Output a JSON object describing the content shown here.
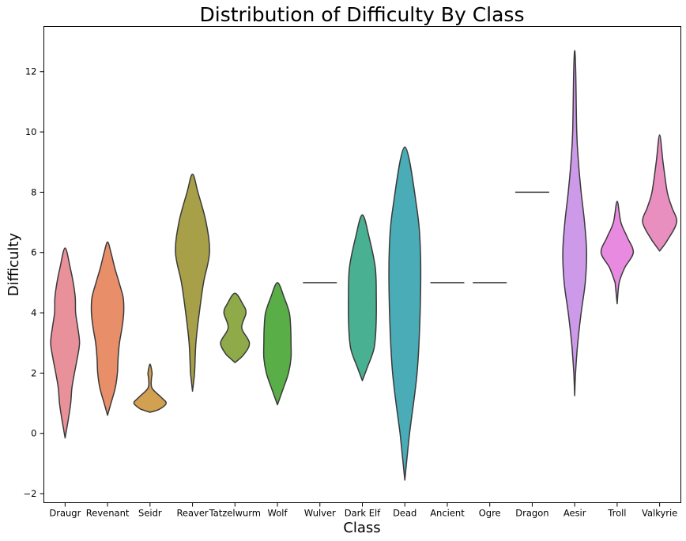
{
  "chart_data": {
    "type": "violin",
    "title": "Distribution of Difficulty By Class",
    "xlabel": "Class",
    "ylabel": "Difficulty",
    "ylim": [
      -2.3,
      13.5
    ],
    "yticks": [
      -2,
      0,
      2,
      4,
      6,
      8,
      10,
      12
    ],
    "grid": false,
    "legend": "none",
    "categories": [
      "Draugr",
      "Revenant",
      "Seidr",
      "Reaver",
      "Tatzelwurm",
      "Wolf",
      "Wulver",
      "Dark Elf",
      "Dead",
      "Ancient",
      "Ogre",
      "Dragon",
      "Aesir",
      "Troll",
      "Valkyrie"
    ],
    "violins": [
      {
        "category": "Draugr",
        "color": "#e8919a",
        "profile": [
          [
            -0.15,
            0.0
          ],
          [
            0.5,
            0.2
          ],
          [
            1.0,
            0.33
          ],
          [
            1.5,
            0.4
          ],
          [
            2.0,
            0.55
          ],
          [
            2.5,
            0.72
          ],
          [
            3.0,
            0.85
          ],
          [
            3.5,
            0.75
          ],
          [
            4.0,
            0.62
          ],
          [
            4.5,
            0.6
          ],
          [
            5.0,
            0.48
          ],
          [
            5.5,
            0.3
          ],
          [
            6.15,
            0.0
          ]
        ]
      },
      {
        "category": "Revenant",
        "color": "#e88f6a",
        "profile": [
          [
            0.6,
            0.0
          ],
          [
            1.0,
            0.2
          ],
          [
            1.5,
            0.45
          ],
          [
            2.0,
            0.58
          ],
          [
            2.5,
            0.62
          ],
          [
            3.0,
            0.7
          ],
          [
            3.5,
            0.85
          ],
          [
            4.0,
            0.95
          ],
          [
            4.5,
            0.92
          ],
          [
            5.0,
            0.68
          ],
          [
            5.5,
            0.42
          ],
          [
            6.0,
            0.2
          ],
          [
            6.35,
            0.0
          ]
        ]
      },
      {
        "category": "Seidr",
        "color": "#d1a050",
        "profile": [
          [
            0.7,
            0.0
          ],
          [
            0.8,
            0.55
          ],
          [
            1.0,
            0.95
          ],
          [
            1.2,
            0.65
          ],
          [
            1.5,
            0.12
          ],
          [
            1.8,
            0.08
          ],
          [
            2.0,
            0.12
          ],
          [
            2.3,
            0.0
          ]
        ]
      },
      {
        "category": "Reaver",
        "color": "#a8a048",
        "profile": [
          [
            1.4,
            0.0
          ],
          [
            2.0,
            0.12
          ],
          [
            3.0,
            0.2
          ],
          [
            4.0,
            0.4
          ],
          [
            5.0,
            0.65
          ],
          [
            6.0,
            1.0
          ],
          [
            7.0,
            0.8
          ],
          [
            8.0,
            0.32
          ],
          [
            8.6,
            0.0
          ]
        ]
      },
      {
        "category": "Tatzelwurm",
        "color": "#8faa48",
        "profile": [
          [
            2.35,
            0.0
          ],
          [
            2.6,
            0.5
          ],
          [
            3.0,
            0.85
          ],
          [
            3.5,
            0.4
          ],
          [
            4.0,
            0.65
          ],
          [
            4.3,
            0.45
          ],
          [
            4.65,
            0.0
          ]
        ]
      },
      {
        "category": "Wolf",
        "color": "#5aae48",
        "profile": [
          [
            0.95,
            0.0
          ],
          [
            1.5,
            0.35
          ],
          [
            2.0,
            0.65
          ],
          [
            2.5,
            0.8
          ],
          [
            3.0,
            0.8
          ],
          [
            3.5,
            0.78
          ],
          [
            4.0,
            0.7
          ],
          [
            4.5,
            0.4
          ],
          [
            5.0,
            0.0
          ]
        ]
      },
      {
        "category": "Wulver",
        "color": "#555555",
        "line": 5
      },
      {
        "category": "Dark Elf",
        "color": "#4ab092",
        "profile": [
          [
            1.75,
            0.0
          ],
          [
            2.2,
            0.3
          ],
          [
            2.8,
            0.68
          ],
          [
            3.5,
            0.8
          ],
          [
            4.5,
            0.82
          ],
          [
            5.5,
            0.76
          ],
          [
            6.5,
            0.4
          ],
          [
            7.25,
            0.0
          ]
        ]
      },
      {
        "category": "Dead",
        "color": "#4aacb6",
        "profile": [
          [
            -1.55,
            0.0
          ],
          [
            0.0,
            0.28
          ],
          [
            2.0,
            0.72
          ],
          [
            4.0,
            0.9
          ],
          [
            6.0,
            0.92
          ],
          [
            7.5,
            0.7
          ],
          [
            9.5,
            0.0
          ]
        ]
      },
      {
        "category": "Ancient",
        "color": "#555555",
        "line": 5
      },
      {
        "category": "Ogre",
        "color": "#555555",
        "line": 5
      },
      {
        "category": "Dragon",
        "color": "#555555",
        "line": 8
      },
      {
        "category": "Aesir",
        "color": "#cc9ae8",
        "profile": [
          [
            1.25,
            0.0
          ],
          [
            2.0,
            0.05
          ],
          [
            3.0,
            0.18
          ],
          [
            4.0,
            0.38
          ],
          [
            5.0,
            0.62
          ],
          [
            6.0,
            0.7
          ],
          [
            7.0,
            0.58
          ],
          [
            8.0,
            0.38
          ],
          [
            9.0,
            0.22
          ],
          [
            10.0,
            0.12
          ],
          [
            12.0,
            0.06
          ],
          [
            12.7,
            0.0
          ]
        ]
      },
      {
        "category": "Troll",
        "color": "#e88be0",
        "profile": [
          [
            4.3,
            0.0
          ],
          [
            5.0,
            0.12
          ],
          [
            5.5,
            0.45
          ],
          [
            6.0,
            0.95
          ],
          [
            6.5,
            0.6
          ],
          [
            7.0,
            0.22
          ],
          [
            7.7,
            0.0
          ]
        ]
      },
      {
        "category": "Valkyrie",
        "color": "#e88fc0",
        "profile": [
          [
            6.05,
            0.0
          ],
          [
            6.4,
            0.45
          ],
          [
            7.0,
            1.0
          ],
          [
            7.5,
            0.72
          ],
          [
            8.0,
            0.45
          ],
          [
            9.0,
            0.2
          ],
          [
            9.9,
            0.0
          ]
        ]
      }
    ]
  }
}
